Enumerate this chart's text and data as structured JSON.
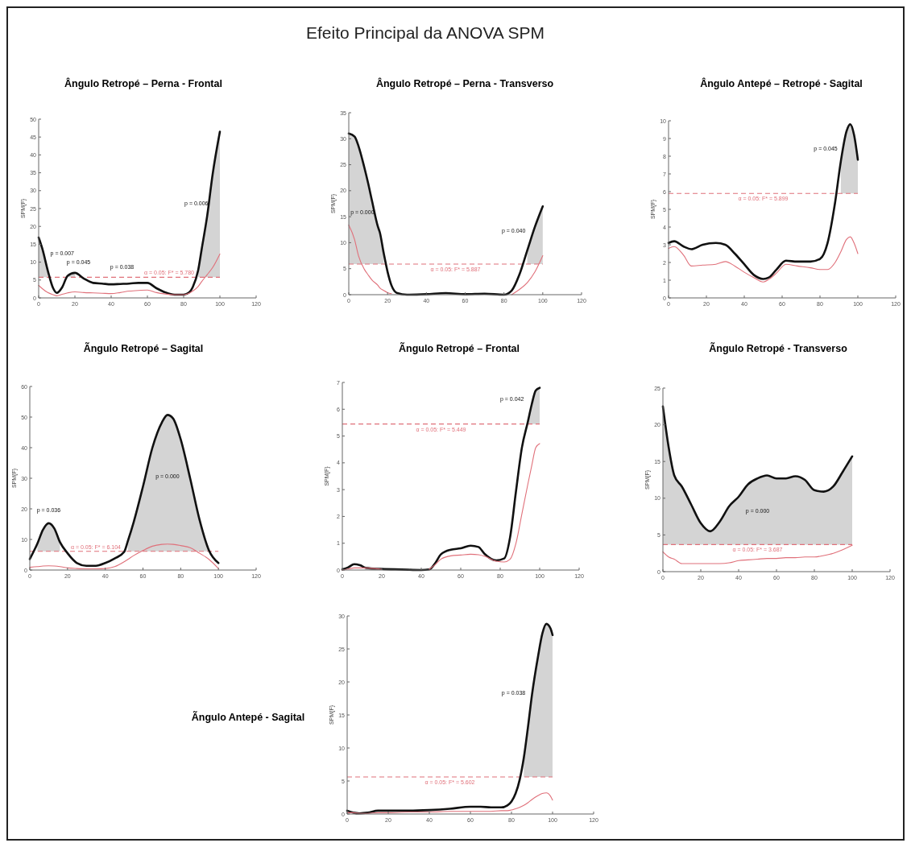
{
  "chart_data": [
    {
      "type": "other",
      "title": "Efeito Principal da ANOVA SPM"
    },
    {
      "type": "line",
      "title": "Ângulo Retropé – Perna - Frontal",
      "ylabel": "SPM{F}",
      "xlim": [
        0,
        120
      ],
      "xticks": [
        0,
        20,
        40,
        60,
        80,
        100,
        120
      ],
      "ylim": [
        0,
        50
      ],
      "yticks": [
        0,
        5,
        10,
        15,
        20,
        25,
        30,
        35,
        40,
        45,
        50
      ],
      "x": [
        0,
        2,
        5,
        8,
        10,
        13,
        16,
        20,
        25,
        30,
        35,
        40,
        45,
        50,
        55,
        60,
        65,
        70,
        75,
        80,
        83,
        85,
        88,
        90,
        93,
        96,
        100
      ],
      "series": [
        {
          "color": "#111111",
          "values": [
            16.9,
            13.8,
            7.7,
            2.7,
            1.4,
            3,
            6.2,
            7,
            5.4,
            4.2,
            4,
            3.8,
            3.9,
            4,
            4.2,
            4.2,
            2.7,
            1.5,
            0.9,
            0.9,
            1.5,
            3,
            7.7,
            13.8,
            23,
            34.6,
            46.5
          ],
          "lower": [
            5.78,
            5.78,
            5.78,
            null,
            null,
            null,
            5.78,
            5.78,
            null,
            null,
            null,
            null,
            null,
            null,
            null,
            null,
            null,
            null,
            null,
            null,
            null,
            null,
            5.78,
            5.78,
            5.78,
            5.78,
            5.78
          ],
          "upper": [
            16.9,
            13.8,
            7.7,
            null,
            null,
            null,
            6.2,
            7,
            null,
            null,
            null,
            null,
            null,
            null,
            null,
            null,
            null,
            null,
            null,
            null,
            null,
            null,
            7.7,
            13.8,
            23,
            34.6,
            46.5
          ]
        },
        {
          "color": "#e0707a",
          "values": [
            3.5,
            2.6,
            1.5,
            0.9,
            0.6,
            1,
            1.4,
            1.7,
            1.5,
            1.4,
            1.3,
            1.2,
            1.5,
            1.9,
            2.1,
            2.2,
            1.5,
            1.1,
            0.9,
            0.9,
            1.3,
            1.9,
            3.2,
            4.6,
            6.5,
            8.5,
            12.3
          ]
        }
      ],
      "ref_lines": [
        {
          "axis": "y",
          "value": 5.78,
          "label": "α = 0.05:  F* = 5.780",
          "color": "#e0707a",
          "line_style": "dashed"
        }
      ],
      "annotations": [
        "p = 0.007",
        "p = 0.045",
        "p = 0.038",
        "p = 0.006"
      ]
    },
    {
      "type": "line",
      "title": "Ângulo Retropé – Perna - Transverso",
      "ylabel": "SPM{F}",
      "xlim": [
        0,
        120
      ],
      "xticks": [
        0,
        20,
        40,
        60,
        80,
        100,
        120
      ],
      "ylim": [
        0,
        35
      ],
      "yticks": [
        0,
        5,
        10,
        15,
        20,
        25,
        30,
        35
      ],
      "x": [
        0,
        3,
        5,
        8,
        10,
        12,
        15,
        16,
        18,
        20,
        22,
        25,
        30,
        40,
        50,
        60,
        70,
        80,
        84,
        88,
        92,
        96,
        100
      ],
      "series": [
        {
          "color": "#111111",
          "values": [
            31,
            30.4,
            28.6,
            24.5,
            21.4,
            18,
            13.1,
            12,
            8,
            4.4,
            1.8,
            0.3,
            0,
            0.1,
            0.3,
            0.1,
            0.2,
            0,
            0.8,
            3.9,
            8.5,
            13.1,
            17
          ],
          "lower": [
            5.887,
            5.887,
            5.887,
            5.887,
            5.887,
            5.887,
            5.887,
            5.887,
            5.887,
            null,
            null,
            null,
            null,
            null,
            null,
            null,
            null,
            null,
            null,
            null,
            5.887,
            5.887,
            5.887
          ],
          "upper": [
            31,
            30.4,
            28.6,
            24.5,
            21.4,
            18,
            13.1,
            12,
            8,
            null,
            null,
            null,
            null,
            null,
            null,
            null,
            null,
            null,
            null,
            null,
            8.5,
            13.1,
            17
          ]
        },
        {
          "color": "#e0707a",
          "values": [
            13.4,
            10.6,
            7.5,
            4.9,
            3.8,
            2.8,
            1.8,
            1.3,
            0.8,
            0.4,
            0.2,
            null,
            null,
            null,
            null,
            null,
            null,
            null,
            0,
            1,
            2.3,
            4.4,
            7.5
          ]
        }
      ],
      "ref_lines": [
        {
          "axis": "y",
          "value": 5.887,
          "label": "α = 0.05:  F* = 5.887",
          "color": "#e0707a",
          "line_style": "dashed"
        }
      ],
      "annotations": [
        "p = 0.000",
        "p = 0.040"
      ]
    },
    {
      "type": "line",
      "title": "Ângulo Antepé – Retropé - Sagital",
      "ylabel": "SPM{F}",
      "xlim": [
        0,
        120
      ],
      "xticks": [
        0,
        20,
        40,
        60,
        80,
        100,
        120
      ],
      "ylim": [
        0,
        10
      ],
      "yticks": [
        0,
        1,
        2,
        3,
        4,
        5,
        6,
        7,
        8,
        9,
        10
      ],
      "x": [
        0,
        3,
        8,
        12,
        18,
        25,
        30,
        35,
        40,
        45,
        50,
        53,
        57,
        62,
        68,
        75,
        80,
        84,
        88,
        91,
        94,
        96,
        98,
        100
      ],
      "series": [
        {
          "color": "#111111",
          "values": [
            3.1,
            3.2,
            2.9,
            2.75,
            3,
            3.1,
            3,
            2.5,
            1.9,
            1.3,
            1.07,
            1.15,
            1.6,
            2.1,
            2.05,
            2.05,
            2.2,
            3.1,
            5.4,
            7.7,
            9.4,
            9.8,
            9.2,
            7.8
          ],
          "lower": [
            null,
            null,
            null,
            null,
            null,
            null,
            null,
            null,
            null,
            null,
            null,
            null,
            null,
            null,
            null,
            null,
            null,
            null,
            null,
            5.899,
            5.899,
            5.899,
            5.899,
            5.899
          ],
          "upper": [
            null,
            null,
            null,
            null,
            null,
            null,
            null,
            null,
            null,
            null,
            null,
            null,
            null,
            null,
            null,
            null,
            null,
            null,
            null,
            7.7,
            9.4,
            9.8,
            9.2,
            7.8
          ]
        },
        {
          "color": "#e0707a",
          "values": [
            2.8,
            2.9,
            2.4,
            1.8,
            1.85,
            1.9,
            2.05,
            1.8,
            1.45,
            1.15,
            0.9,
            1.05,
            1.4,
            1.9,
            1.8,
            1.7,
            1.6,
            1.6,
            2,
            2.6,
            3.3,
            3.45,
            3.1,
            2.5
          ]
        }
      ],
      "ref_lines": [
        {
          "axis": "y",
          "value": 5.899,
          "label": "α = 0.05:  F* = 5.899",
          "color": "#e0707a",
          "line_style": "dashed"
        }
      ],
      "annotations": [
        "p = 0.045"
      ]
    },
    {
      "type": "line",
      "title": "Ãngulo Retropé – Sagital",
      "ylabel": "SPM{F}",
      "xlim": [
        0,
        120
      ],
      "xticks": [
        0,
        20,
        40,
        60,
        80,
        100,
        120
      ],
      "ylim": [
        0,
        60
      ],
      "yticks": [
        0,
        10,
        20,
        30,
        40,
        50,
        60
      ],
      "x": [
        0,
        4,
        7,
        10,
        13,
        16,
        20,
        25,
        30,
        35,
        40,
        45,
        50,
        52,
        55,
        60,
        65,
        70,
        73,
        76,
        80,
        85,
        90,
        95,
        100
      ],
      "series": [
        {
          "color": "#111111",
          "values": [
            3.6,
            8.6,
            13.2,
            15.3,
            13.6,
            9.1,
            5.5,
            2.3,
            1.4,
            1.4,
            2.3,
            3.8,
            5.9,
            9.5,
            15.5,
            27.3,
            40,
            48.2,
            50.7,
            49.5,
            42.7,
            30,
            16.4,
            6.4,
            2.3
          ],
          "lower": [
            null,
            6.104,
            6.104,
            6.104,
            6.104,
            6.104,
            null,
            null,
            null,
            null,
            null,
            null,
            null,
            6.104,
            6.104,
            6.104,
            6.104,
            6.104,
            6.104,
            6.104,
            6.104,
            6.104,
            6.104,
            6.104,
            null
          ],
          "upper": [
            null,
            8.6,
            13.2,
            15.3,
            13.6,
            9.1,
            null,
            null,
            null,
            null,
            null,
            null,
            null,
            9.5,
            15.5,
            27.3,
            40,
            48.2,
            50.7,
            49.5,
            42.7,
            30,
            16.4,
            6.4,
            null
          ]
        },
        {
          "color": "#e0707a",
          "values": [
            0.9,
            1.1,
            1.3,
            1.4,
            1.3,
            1.1,
            0.7,
            0.5,
            0.4,
            0.4,
            0.5,
            1.1,
            2.7,
            3.5,
            4.7,
            6.4,
            7.8,
            8.4,
            8.5,
            8.4,
            8,
            7.3,
            5.5,
            3.5,
            0.5
          ]
        }
      ],
      "ref_lines": [
        {
          "axis": "y",
          "value": 6.104,
          "label": "α = 0.05:  F* = 6.104",
          "color": "#e0707a",
          "line_style": "dashed"
        }
      ],
      "annotations": [
        "p = 0.036",
        "p = 0.000"
      ]
    },
    {
      "type": "line",
      "title": "Ãngulo Retropé – Frontal",
      "ylabel": "SPM{F}",
      "xlim": [
        0,
        120
      ],
      "xticks": [
        0,
        20,
        40,
        60,
        80,
        100,
        120
      ],
      "ylim": [
        0,
        7
      ],
      "yticks": [
        0,
        1,
        2,
        3,
        4,
        5,
        6,
        7
      ],
      "x": [
        0,
        3,
        6,
        9,
        12,
        20,
        30,
        40,
        44,
        47,
        50,
        55,
        60,
        65,
        69,
        72,
        78,
        82,
        85,
        88,
        91,
        94,
        96,
        98,
        100
      ],
      "series": [
        {
          "color": "#111111",
          "values": [
            0.02,
            0.1,
            0.22,
            0.18,
            0.08,
            0.04,
            0.02,
            0,
            0.02,
            0.25,
            0.59,
            0.76,
            0.81,
            0.91,
            0.86,
            0.61,
            0.36,
            0.43,
            1.22,
            2.94,
            4.57,
            5.53,
            6.19,
            6.7,
            6.8
          ],
          "lower": [
            null,
            null,
            null,
            null,
            null,
            null,
            null,
            null,
            null,
            null,
            null,
            null,
            null,
            null,
            null,
            null,
            null,
            null,
            null,
            null,
            null,
            5.449,
            5.449,
            5.449,
            5.449
          ],
          "upper": [
            null,
            null,
            null,
            null,
            null,
            null,
            null,
            null,
            null,
            null,
            null,
            null,
            null,
            null,
            null,
            null,
            null,
            null,
            null,
            null,
            null,
            5.53,
            6.19,
            6.7,
            6.8
          ]
        },
        {
          "color": "#e0707a",
          "values": [
            0,
            0.04,
            0.08,
            0.08,
            0.08,
            0.03,
            null,
            null,
            0.03,
            0.2,
            0.41,
            0.53,
            0.56,
            0.59,
            0.57,
            0.52,
            0.33,
            0.3,
            0.4,
            1,
            2.1,
            3.2,
            3.9,
            4.57,
            4.72
          ]
        }
      ],
      "ref_lines": [
        {
          "axis": "y",
          "value": 5.449,
          "label": "α = 0.05:  F* = 5.449",
          "color": "#e0707a",
          "line_style": "dashed"
        }
      ],
      "annotations": [
        "p = 0.042"
      ]
    },
    {
      "type": "line",
      "title": "Ãngulo Retropé - Transverso",
      "ylabel": "SPM{F}",
      "xlim": [
        0,
        120
      ],
      "xticks": [
        0,
        20,
        40,
        60,
        80,
        100,
        120
      ],
      "ylim": [
        0,
        25
      ],
      "yticks": [
        0,
        5,
        10,
        15,
        20,
        25
      ],
      "x": [
        0,
        3,
        6,
        10,
        15,
        20,
        25,
        30,
        35,
        40,
        45,
        50,
        55,
        60,
        65,
        70,
        75,
        80,
        85,
        90,
        95,
        100
      ],
      "series": [
        {
          "color": "#111111",
          "values": [
            22.5,
            17,
            13.1,
            11.6,
            9.1,
            6.6,
            5.5,
            6.8,
            8.9,
            10.2,
            11.9,
            12.7,
            13.1,
            12.7,
            12.7,
            13,
            12.5,
            11.1,
            10.9,
            11.6,
            13.6,
            15.7
          ],
          "lower": [
            3.687,
            3.687,
            3.687,
            3.687,
            3.687,
            3.687,
            3.687,
            3.687,
            3.687,
            3.687,
            3.687,
            3.687,
            3.687,
            3.687,
            3.687,
            3.687,
            3.687,
            3.687,
            3.687,
            3.687,
            3.687,
            3.687
          ],
          "upper": [
            22.5,
            17,
            13.1,
            11.6,
            9.1,
            6.6,
            5.5,
            6.8,
            8.9,
            10.2,
            11.9,
            12.7,
            13.1,
            12.7,
            12.7,
            13,
            12.5,
            11.1,
            10.9,
            11.6,
            13.6,
            15.7
          ]
        },
        {
          "color": "#e0707a",
          "values": [
            2.7,
            2,
            1.7,
            1.1,
            1.1,
            1.1,
            1.1,
            1.1,
            1.2,
            1.5,
            1.6,
            1.7,
            1.8,
            1.8,
            1.9,
            1.9,
            2,
            2,
            2.2,
            2.5,
            3,
            3.6
          ]
        }
      ],
      "ref_lines": [
        {
          "axis": "y",
          "value": 3.687,
          "label": "α = 0.05:  F* = 3.687",
          "color": "#e0707a",
          "line_style": "dashed"
        }
      ],
      "annotations": [
        "p = 0.000"
      ]
    },
    {
      "type": "line",
      "title": "Ãngulo Antepé - Sagital",
      "ylabel": "SPM{F}",
      "xlim": [
        0,
        120
      ],
      "xticks": [
        0,
        20,
        40,
        60,
        80,
        100,
        120
      ],
      "ylim": [
        0,
        30
      ],
      "yticks": [
        0,
        5,
        10,
        15,
        20,
        25,
        30
      ],
      "x": [
        0,
        3,
        6,
        10,
        15,
        20,
        30,
        40,
        50,
        60,
        65,
        70,
        75,
        78,
        80,
        82,
        84,
        86,
        88,
        90,
        93,
        95,
        97,
        99,
        100
      ],
      "series": [
        {
          "color": "#111111",
          "values": [
            0.5,
            0.2,
            0.1,
            0.2,
            0.5,
            0.5,
            0.5,
            0.6,
            0.8,
            1.1,
            1.1,
            1,
            1,
            1.3,
            1.9,
            3.1,
            5.2,
            8.5,
            13.1,
            18.1,
            24,
            27.3,
            28.8,
            28.1,
            27.1
          ],
          "lower": [
            null,
            null,
            null,
            null,
            null,
            null,
            null,
            null,
            null,
            null,
            null,
            null,
            null,
            null,
            null,
            null,
            null,
            5.602,
            5.602,
            5.602,
            5.602,
            5.602,
            5.602,
            5.602,
            5.602
          ],
          "upper": [
            null,
            null,
            null,
            null,
            null,
            null,
            null,
            null,
            null,
            null,
            null,
            null,
            null,
            null,
            null,
            null,
            null,
            8.5,
            13.1,
            18.1,
            24,
            27.3,
            28.8,
            28.1,
            27.1
          ]
        },
        {
          "color": "#e0707a",
          "values": [
            0.2,
            0.2,
            0.1,
            0.1,
            0.2,
            0.2,
            0.3,
            0.3,
            0.4,
            0.4,
            0.4,
            0.4,
            0.5,
            0.5,
            0.6,
            0.8,
            1,
            1.3,
            1.7,
            2.2,
            2.8,
            3.1,
            3.2,
            2.7,
            2.1
          ]
        }
      ],
      "ref_lines": [
        {
          "axis": "y",
          "value": 5.602,
          "label": "α = 0.05:  F* = 5.602",
          "color": "#e0707a",
          "line_style": "dashed"
        }
      ],
      "annotations": [
        "p = 0.038"
      ]
    }
  ]
}
